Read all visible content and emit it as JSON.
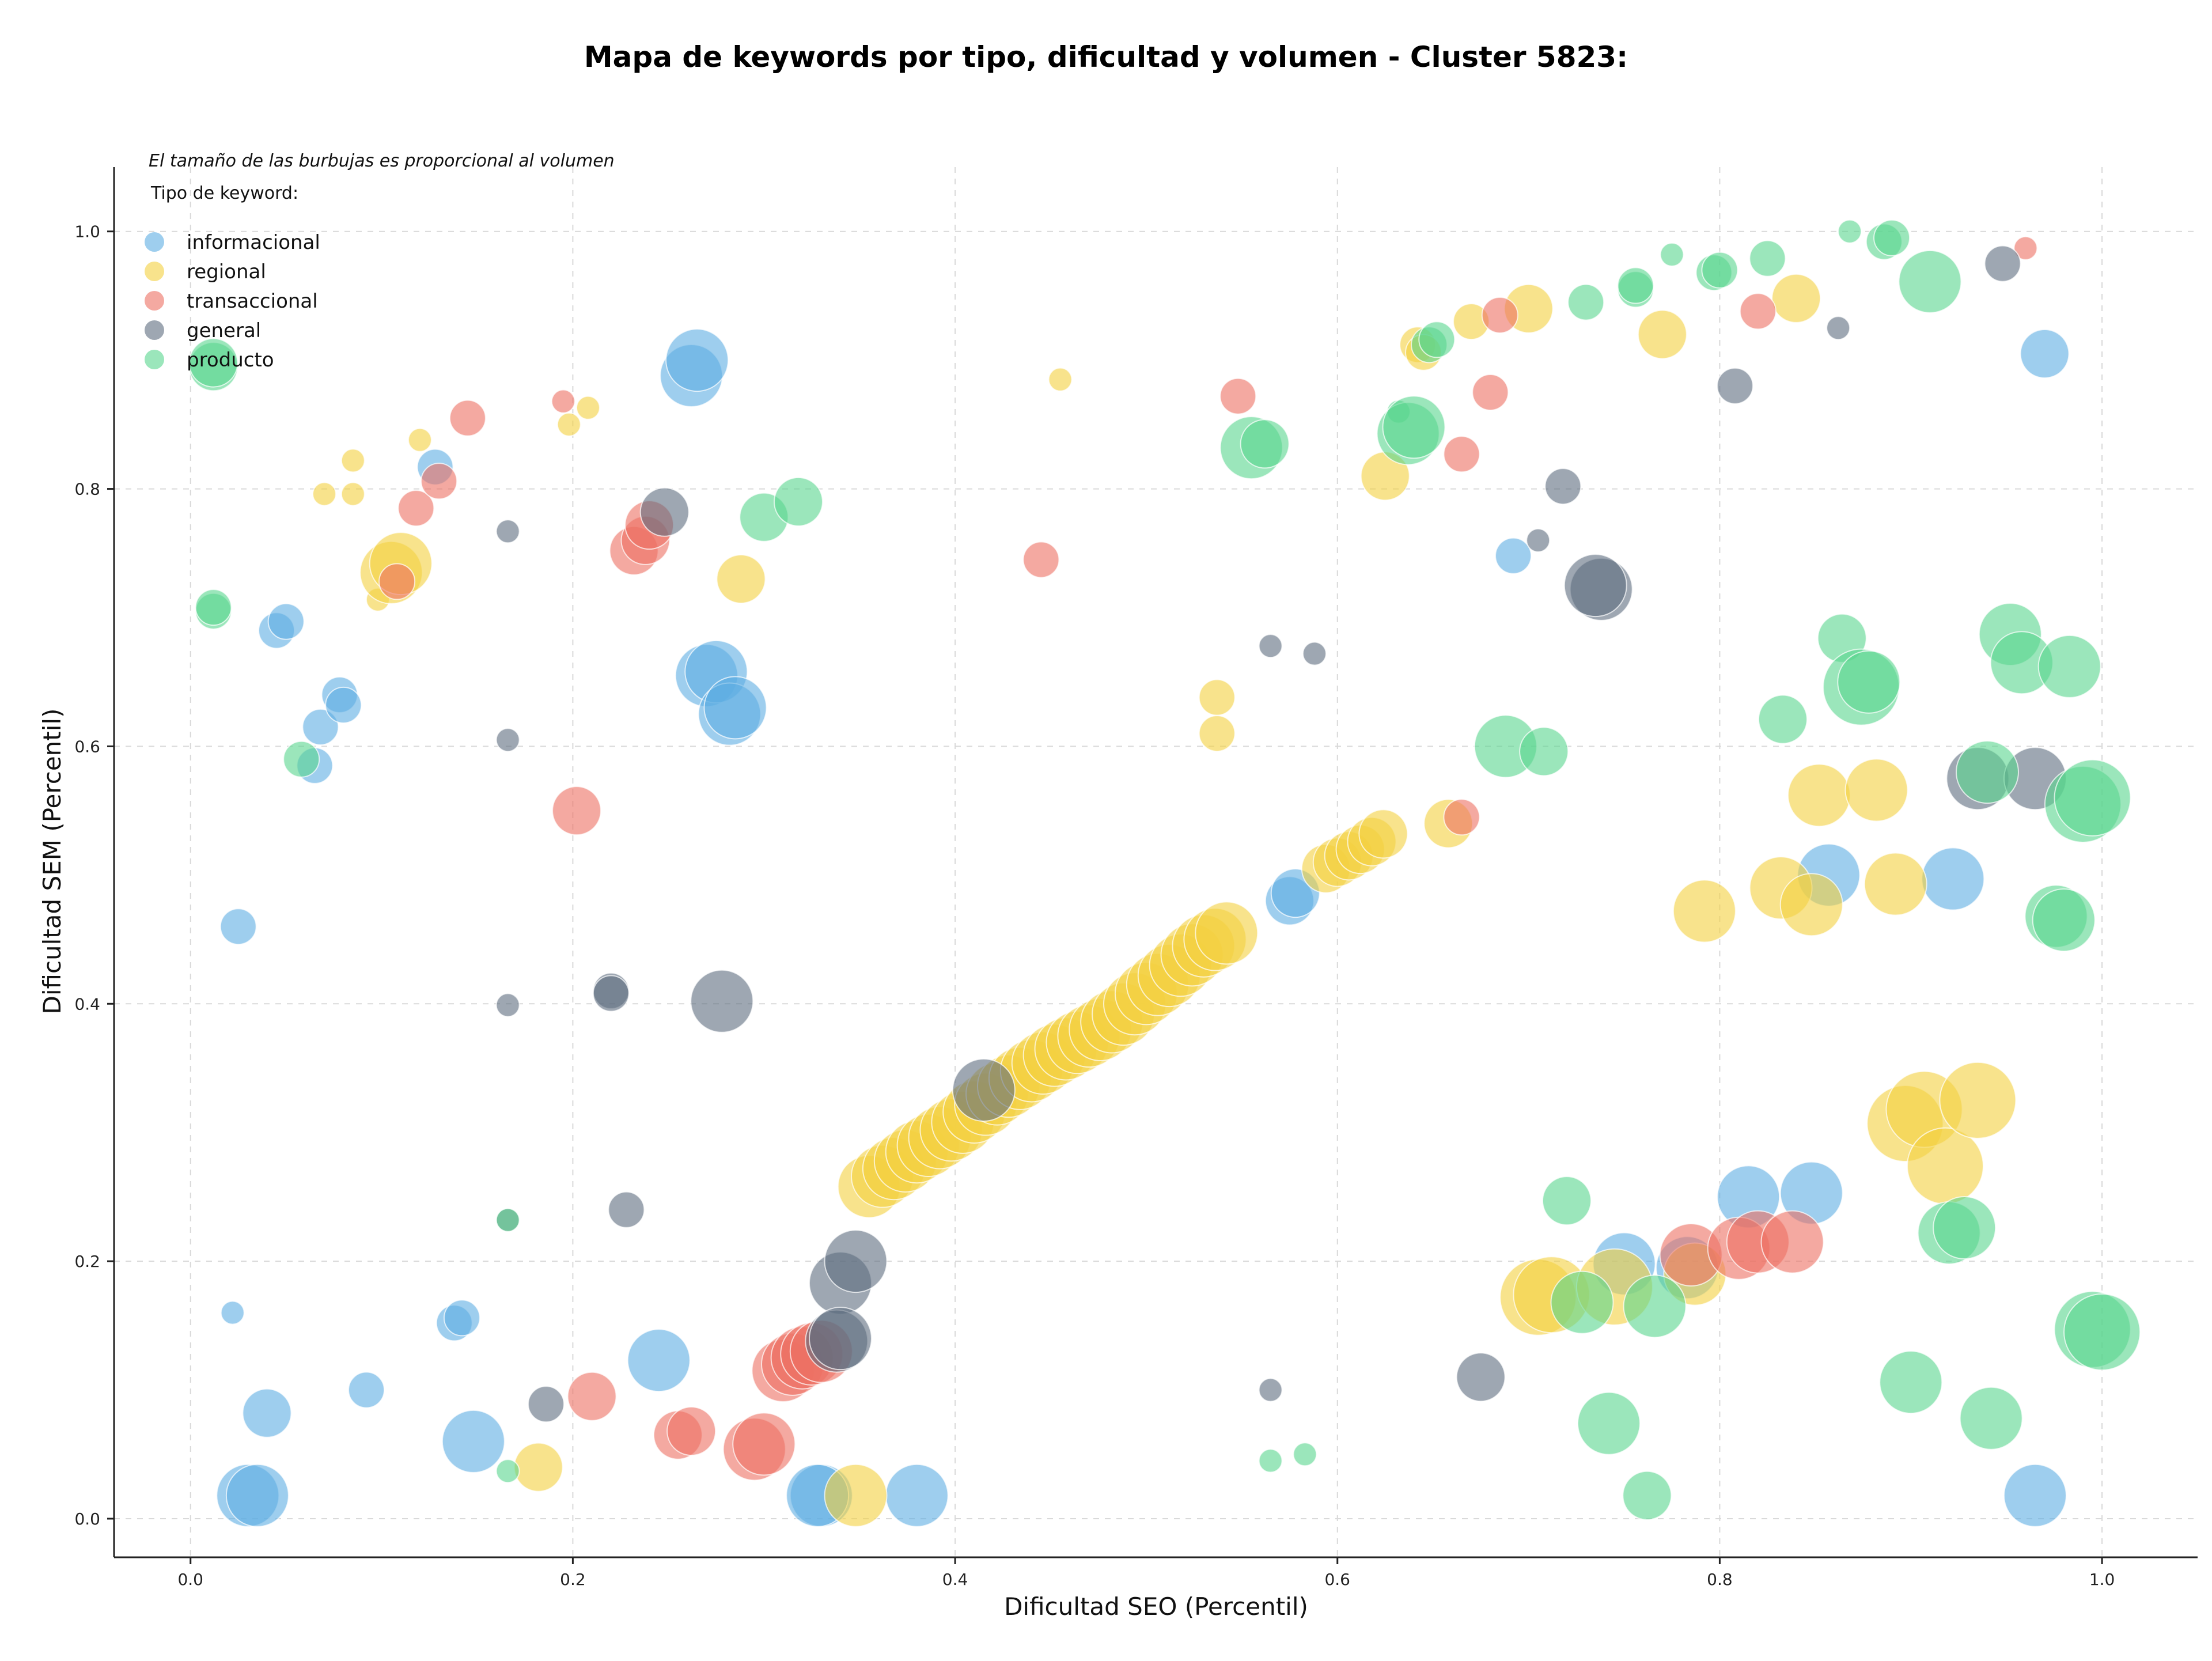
{
  "chart_data": {
    "type": "scatter",
    "title": "Mapa de keywords por tipo, dificultad y volumen - Cluster 5823:",
    "xlabel": "Dificultad SEO (Percentil)",
    "ylabel": "Dificultad SEM (Percentil)",
    "note": "El tamaño de las burbujas es proporcional al volumen",
    "legend_title": "Tipo de keyword:",
    "legend_position": "top-left",
    "grid": true,
    "xlim": [
      -0.04,
      1.05
    ],
    "ylim": [
      -0.03,
      1.05
    ],
    "xticks": [
      0.0,
      0.2,
      0.4,
      0.6,
      0.8,
      1.0
    ],
    "yticks": [
      0.0,
      0.2,
      0.4,
      0.6,
      0.8,
      1.0
    ],
    "xtick_labels": [
      "0.0",
      "0.2",
      "0.4",
      "0.6",
      "0.8",
      "1.0"
    ],
    "ytick_labels": [
      "0.0",
      "0.2",
      "0.4",
      "0.6",
      "0.8",
      "1.0"
    ],
    "bubble_size": "proportional to volume",
    "series": [
      {
        "name": "informacional",
        "color": "#5DADE2",
        "points": [
          [
            0.025,
            0.46,
            2
          ],
          [
            0.022,
            0.16,
            1
          ],
          [
            0.04,
            0.082,
            3
          ],
          [
            0.03,
            0.018,
            4
          ],
          [
            0.035,
            0.018,
            4
          ],
          [
            0.092,
            0.1,
            2
          ],
          [
            0.045,
            0.69,
            2
          ],
          [
            0.05,
            0.697,
            2
          ],
          [
            0.068,
            0.615,
            2
          ],
          [
            0.078,
            0.64,
            2
          ],
          [
            0.08,
            0.632,
            2
          ],
          [
            0.065,
            0.585,
            2
          ],
          [
            0.128,
            0.817,
            2
          ],
          [
            0.138,
            0.152,
            2
          ],
          [
            0.142,
            0.156,
            2
          ],
          [
            0.148,
            0.06,
            4
          ],
          [
            0.245,
            0.123,
            4
          ],
          [
            0.262,
            0.888,
            4
          ],
          [
            0.265,
            0.9,
            4
          ],
          [
            0.27,
            0.655,
            4
          ],
          [
            0.275,
            0.658,
            4
          ],
          [
            0.282,
            0.625,
            4
          ],
          [
            0.285,
            0.63,
            4
          ],
          [
            0.33,
            0.018,
            4
          ],
          [
            0.328,
            0.018,
            4
          ],
          [
            0.38,
            0.018,
            4
          ],
          [
            0.575,
            0.48,
            3
          ],
          [
            0.578,
            0.486,
            3
          ],
          [
            0.692,
            0.748,
            2
          ],
          [
            0.75,
            0.198,
            4
          ],
          [
            0.783,
            0.195,
            4
          ],
          [
            0.815,
            0.25,
            4
          ],
          [
            0.848,
            0.253,
            4
          ],
          [
            0.857,
            0.5,
            4
          ],
          [
            0.922,
            0.497,
            4
          ],
          [
            0.965,
            0.018,
            4
          ],
          [
            0.97,
            0.905,
            3
          ]
        ]
      },
      {
        "name": "regional",
        "color": "#F4D03F",
        "points": [
          [
            0.07,
            0.796,
            1
          ],
          [
            0.085,
            0.796,
            1
          ],
          [
            0.085,
            0.822,
            1
          ],
          [
            0.098,
            0.714,
            1
          ],
          [
            0.105,
            0.735,
            4
          ],
          [
            0.11,
            0.742,
            4
          ],
          [
            0.12,
            0.838,
            1
          ],
          [
            0.198,
            0.85,
            1
          ],
          [
            0.208,
            0.863,
            1
          ],
          [
            0.182,
            0.04,
            3
          ],
          [
            0.288,
            0.73,
            3
          ],
          [
            0.348,
            0.018,
            4
          ],
          [
            0.455,
            0.885,
            1
          ],
          [
            0.537,
            0.638,
            2
          ],
          [
            0.537,
            0.61,
            2
          ],
          [
            0.625,
            0.81,
            3
          ],
          [
            0.642,
            0.912,
            2
          ],
          [
            0.645,
            0.906,
            2
          ],
          [
            0.658,
            0.54,
            3
          ],
          [
            0.67,
            0.93,
            2
          ],
          [
            0.7,
            0.94,
            3
          ],
          [
            0.705,
            0.172,
            5
          ],
          [
            0.712,
            0.174,
            5
          ],
          [
            0.745,
            0.18,
            5
          ],
          [
            0.77,
            0.92,
            3
          ],
          [
            0.787,
            0.19,
            4
          ],
          [
            0.792,
            0.472,
            4
          ],
          [
            0.832,
            0.49,
            4
          ],
          [
            0.84,
            0.948,
            3
          ],
          [
            0.848,
            0.477,
            4
          ],
          [
            0.852,
            0.562,
            4
          ],
          [
            0.882,
            0.566,
            4
          ],
          [
            0.892,
            0.493,
            4
          ],
          [
            0.897,
            0.307,
            5
          ],
          [
            0.907,
            0.318,
            5
          ],
          [
            0.918,
            0.274,
            5
          ],
          [
            0.935,
            0.325,
            5
          ],
          [
            0.355,
            0.258,
            4
          ],
          [
            0.362,
            0.266,
            4
          ],
          [
            0.368,
            0.272,
            4
          ],
          [
            0.374,
            0.278,
            4
          ],
          [
            0.38,
            0.285,
            4
          ],
          [
            0.386,
            0.29,
            4
          ],
          [
            0.392,
            0.296,
            4
          ],
          [
            0.398,
            0.302,
            4
          ],
          [
            0.404,
            0.308,
            4
          ],
          [
            0.41,
            0.316,
            4
          ],
          [
            0.416,
            0.322,
            4
          ],
          [
            0.422,
            0.33,
            4
          ],
          [
            0.428,
            0.336,
            4
          ],
          [
            0.434,
            0.342,
            4
          ],
          [
            0.44,
            0.348,
            4
          ],
          [
            0.446,
            0.354,
            4
          ],
          [
            0.452,
            0.36,
            4
          ],
          [
            0.458,
            0.365,
            4
          ],
          [
            0.464,
            0.37,
            4
          ],
          [
            0.47,
            0.375,
            4
          ],
          [
            0.476,
            0.38,
            4
          ],
          [
            0.482,
            0.386,
            4
          ],
          [
            0.488,
            0.392,
            4
          ],
          [
            0.494,
            0.4,
            4
          ],
          [
            0.5,
            0.408,
            4
          ],
          [
            0.506,
            0.415,
            4
          ],
          [
            0.512,
            0.422,
            4
          ],
          [
            0.518,
            0.43,
            4
          ],
          [
            0.524,
            0.438,
            4
          ],
          [
            0.53,
            0.445,
            4
          ],
          [
            0.536,
            0.45,
            4
          ],
          [
            0.542,
            0.455,
            4
          ],
          [
            0.594,
            0.505,
            3
          ],
          [
            0.6,
            0.51,
            3
          ],
          [
            0.606,
            0.515,
            3
          ],
          [
            0.612,
            0.52,
            3
          ],
          [
            0.618,
            0.526,
            3
          ],
          [
            0.624,
            0.532,
            3
          ]
        ]
      },
      {
        "name": "transaccional",
        "color": "#EC7063",
        "points": [
          [
            0.108,
            0.728,
            2
          ],
          [
            0.118,
            0.785,
            2
          ],
          [
            0.13,
            0.806,
            2
          ],
          [
            0.145,
            0.855,
            2
          ],
          [
            0.195,
            0.868,
            1
          ],
          [
            0.202,
            0.55,
            3
          ],
          [
            0.21,
            0.095,
            3
          ],
          [
            0.232,
            0.752,
            3
          ],
          [
            0.238,
            0.76,
            3
          ],
          [
            0.24,
            0.772,
            3
          ],
          [
            0.255,
            0.065,
            3
          ],
          [
            0.262,
            0.068,
            3
          ],
          [
            0.295,
            0.054,
            4
          ],
          [
            0.3,
            0.058,
            4
          ],
          [
            0.31,
            0.115,
            4
          ],
          [
            0.315,
            0.12,
            4
          ],
          [
            0.32,
            0.125,
            4
          ],
          [
            0.325,
            0.128,
            4
          ],
          [
            0.33,
            0.13,
            4
          ],
          [
            0.445,
            0.745,
            2
          ],
          [
            0.548,
            0.872,
            2
          ],
          [
            0.665,
            0.827,
            2
          ],
          [
            0.665,
            0.545,
            2
          ],
          [
            0.68,
            0.875,
            2
          ],
          [
            0.685,
            0.935,
            2
          ],
          [
            0.785,
            0.205,
            4
          ],
          [
            0.81,
            0.21,
            4
          ],
          [
            0.82,
            0.215,
            4
          ],
          [
            0.82,
            0.938,
            2
          ],
          [
            0.838,
            0.215,
            4
          ],
          [
            0.96,
            0.987,
            1
          ]
        ]
      },
      {
        "name": "general",
        "color": "#5D6D7E",
        "points": [
          [
            0.166,
            0.767,
            1
          ],
          [
            0.166,
            0.605,
            1
          ],
          [
            0.166,
            0.399,
            1
          ],
          [
            0.166,
            0.232,
            1
          ],
          [
            0.186,
            0.089,
            2
          ],
          [
            0.22,
            0.41,
            2
          ],
          [
            0.22,
            0.408,
            2
          ],
          [
            0.228,
            0.24,
            2
          ],
          [
            0.248,
            0.782,
            3
          ],
          [
            0.278,
            0.402,
            4
          ],
          [
            0.34,
            0.183,
            4
          ],
          [
            0.348,
            0.2,
            4
          ],
          [
            0.338,
            0.138,
            4
          ],
          [
            0.34,
            0.14,
            4
          ],
          [
            0.415,
            0.333,
            4
          ],
          [
            0.565,
            0.678,
            1
          ],
          [
            0.588,
            0.672,
            1
          ],
          [
            0.565,
            0.1,
            1
          ],
          [
            0.675,
            0.11,
            3
          ],
          [
            0.705,
            0.76,
            1
          ],
          [
            0.718,
            0.802,
            2
          ],
          [
            0.738,
            0.722,
            4
          ],
          [
            0.735,
            0.725,
            4
          ],
          [
            0.808,
            0.88,
            2
          ],
          [
            0.862,
            0.925,
            1
          ],
          [
            0.935,
            0.575,
            4
          ],
          [
            0.948,
            0.975,
            2
          ],
          [
            0.965,
            0.575,
            4
          ]
        ]
      },
      {
        "name": "producto",
        "color": "#58D68D",
        "points": [
          [
            0.012,
            0.895,
            3
          ],
          [
            0.012,
            0.898,
            3
          ],
          [
            0.012,
            0.705,
            2
          ],
          [
            0.012,
            0.708,
            2
          ],
          [
            0.058,
            0.59,
            2
          ],
          [
            0.166,
            0.037,
            1
          ],
          [
            0.166,
            0.232,
            1
          ],
          [
            0.3,
            0.778,
            3
          ],
          [
            0.318,
            0.79,
            3
          ],
          [
            0.555,
            0.832,
            4
          ],
          [
            0.562,
            0.835,
            3
          ],
          [
            0.565,
            0.045,
            1
          ],
          [
            0.583,
            0.05,
            1
          ],
          [
            0.632,
            0.86,
            1
          ],
          [
            0.637,
            0.843,
            4
          ],
          [
            0.64,
            0.848,
            4
          ],
          [
            0.648,
            0.912,
            2
          ],
          [
            0.652,
            0.916,
            2
          ],
          [
            0.688,
            0.6,
            4
          ],
          [
            0.708,
            0.596,
            3
          ],
          [
            0.72,
            0.247,
            3
          ],
          [
            0.728,
            0.168,
            4
          ],
          [
            0.73,
            0.945,
            2
          ],
          [
            0.742,
            0.074,
            4
          ],
          [
            0.756,
            0.955,
            2
          ],
          [
            0.756,
            0.958,
            2
          ],
          [
            0.762,
            0.018,
            3
          ],
          [
            0.766,
            0.165,
            4
          ],
          [
            0.775,
            0.982,
            1
          ],
          [
            0.797,
            0.968,
            2
          ],
          [
            0.8,
            0.97,
            2
          ],
          [
            0.825,
            0.979,
            2
          ],
          [
            0.833,
            0.621,
            3
          ],
          [
            0.864,
            0.684,
            3
          ],
          [
            0.874,
            0.646,
            5
          ],
          [
            0.878,
            0.65,
            4
          ],
          [
            0.868,
            1.0,
            1
          ],
          [
            0.886,
            0.992,
            2
          ],
          [
            0.89,
            0.995,
            2
          ],
          [
            0.9,
            0.106,
            4
          ],
          [
            0.91,
            0.961,
            4
          ],
          [
            0.92,
            0.222,
            4
          ],
          [
            0.928,
            0.226,
            4
          ],
          [
            0.94,
            0.58,
            4
          ],
          [
            0.942,
            0.078,
            4
          ],
          [
            0.952,
            0.687,
            4
          ],
          [
            0.958,
            0.665,
            4
          ],
          [
            0.976,
            0.468,
            4
          ],
          [
            0.98,
            0.465,
            4
          ],
          [
            0.983,
            0.662,
            4
          ],
          [
            0.99,
            0.555,
            5
          ],
          [
            0.995,
            0.56,
            5
          ],
          [
            0.995,
            0.147,
            5
          ],
          [
            1.0,
            0.145,
            5
          ]
        ]
      }
    ]
  }
}
